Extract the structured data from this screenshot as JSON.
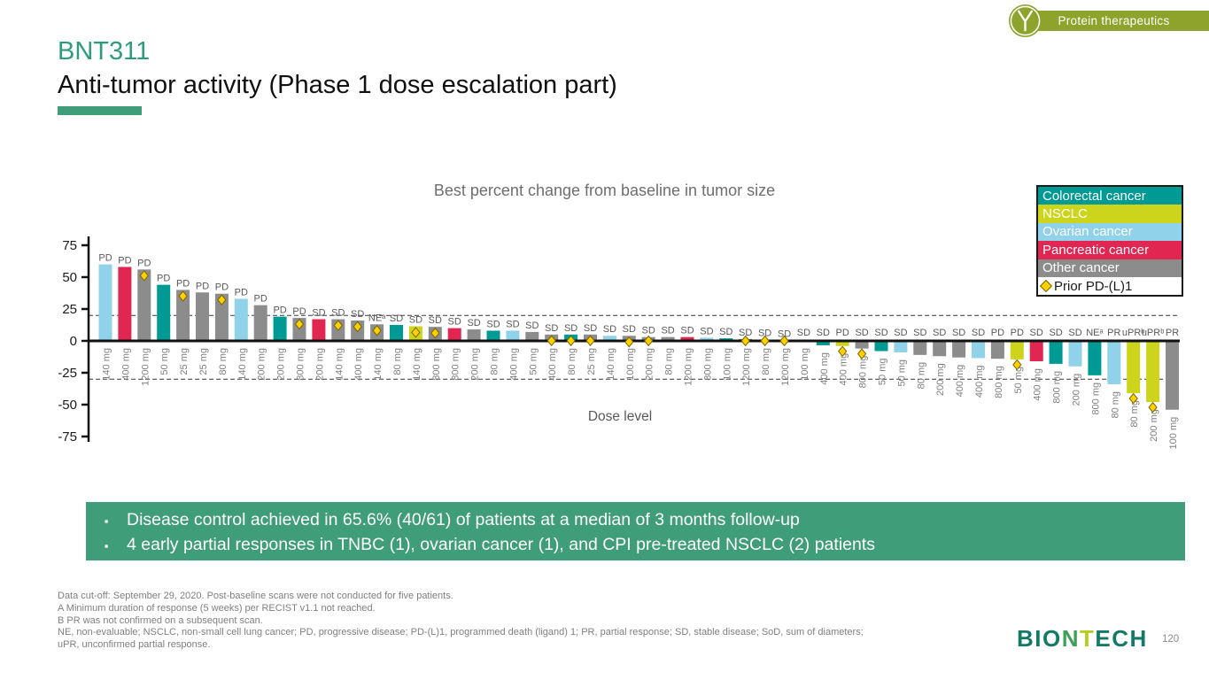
{
  "badge": {
    "label": "Protein therapeutics"
  },
  "header": {
    "product": "BNT311",
    "title": "Anti-tumor activity (Phase 1 dose escalation part)"
  },
  "summary_box": {
    "bullets": [
      "Disease control achieved in 65.6% (40/61) of patients at a median of 3 months follow-up",
      "4 early partial responses in TNBC (1), ovarian cancer (1), and CPI pre-treated NSCLC (2) patients"
    ]
  },
  "footnotes": [
    "Data cut-off: September 29, 2020. Post-baseline scans were not conducted for five patients.",
    "A Minimum duration of response (5 weeks) per RECIST v1.1 not reached.",
    "B PR was not confirmed on a subsequent scan.",
    "NE, non-evaluable; NSCLC, non-small cell lung cancer; PD, progressive disease; PD-(L)1, programmed death (ligand) 1; PR, partial response; SD, stable disease; SoD, sum of diameters;",
    "uPR, unconfirmed partial response."
  ],
  "footer": {
    "page": "120",
    "logo": {
      "part1": "BIO",
      "part2": "N",
      "part3": "T",
      "part4": "ECH"
    }
  },
  "colors": {
    "colorectal": "#009a94",
    "nsclc": "#ccd41c",
    "ovarian": "#8fd2e9",
    "pancreatic": "#e02651",
    "other": "#8c8c8c",
    "diamond_fill": "#ffd100",
    "diamond_stroke": "#7a6400",
    "accent_green": "#3f9d79",
    "badge_olive": "#8da32b"
  },
  "chart_data": {
    "type": "bar",
    "title": "Best percent change from baseline in tumor size",
    "xlabel": "Dose level",
    "ylabel": "",
    "ylim": [
      -75,
      75
    ],
    "yticks": [
      75,
      50,
      25,
      0,
      -25,
      -50,
      -75
    ],
    "reference_lines": [
      20,
      -30
    ],
    "grid": false,
    "legend_position": "top-right",
    "legend": [
      {
        "label": "Colorectal cancer",
        "key": "colorectal"
      },
      {
        "label": "NSCLC",
        "key": "nsclc"
      },
      {
        "label": "Ovarian cancer",
        "key": "ovarian"
      },
      {
        "label": "Pancreatic cancer",
        "key": "pancreatic"
      },
      {
        "label": "Other cancer",
        "key": "other"
      },
      {
        "label": "Prior PD-(L)1",
        "key": "prior_pd_l1"
      }
    ],
    "patients": [
      {
        "dose": "140 mg",
        "value": 60,
        "response": "PD",
        "cancer": "ovarian",
        "prior_pd_l1": false
      },
      {
        "dose": "400 mg",
        "value": 58,
        "response": "PD",
        "cancer": "pancreatic",
        "prior_pd_l1": false
      },
      {
        "dose": "1200 mg",
        "value": 56,
        "response": "PD",
        "cancer": "other",
        "prior_pd_l1": true
      },
      {
        "dose": "50 mg",
        "value": 44,
        "response": "PD",
        "cancer": "colorectal",
        "prior_pd_l1": false
      },
      {
        "dose": "25 mg",
        "value": 40,
        "response": "PD",
        "cancer": "other",
        "prior_pd_l1": true
      },
      {
        "dose": "25 mg",
        "value": 38,
        "response": "PD",
        "cancer": "other",
        "prior_pd_l1": false
      },
      {
        "dose": "80 mg",
        "value": 37,
        "response": "PD",
        "cancer": "other",
        "prior_pd_l1": true
      },
      {
        "dose": "140 mg",
        "value": 33,
        "response": "PD",
        "cancer": "ovarian",
        "prior_pd_l1": false
      },
      {
        "dose": "200 mg",
        "value": 28,
        "response": "PD",
        "cancer": "other",
        "prior_pd_l1": false
      },
      {
        "dose": "200 mg",
        "value": 19,
        "response": "PD",
        "cancer": "colorectal",
        "prior_pd_l1": false
      },
      {
        "dose": "800 mg",
        "value": 18,
        "response": "PD",
        "cancer": "other",
        "prior_pd_l1": true
      },
      {
        "dose": "200 mg",
        "value": 17,
        "response": "SD",
        "cancer": "pancreatic",
        "prior_pd_l1": false
      },
      {
        "dose": "140 mg",
        "value": 17,
        "response": "SD",
        "cancer": "other",
        "prior_pd_l1": true
      },
      {
        "dose": "400 mg",
        "value": 16,
        "response": "SD",
        "cancer": "other",
        "prior_pd_l1": true
      },
      {
        "dose": "140 mg",
        "value": 13,
        "response": "NEᵃ",
        "cancer": "other",
        "prior_pd_l1": true
      },
      {
        "dose": "80 mg",
        "value": 12.5,
        "response": "SD",
        "cancer": "colorectal",
        "prior_pd_l1": false
      },
      {
        "dose": "140 mg",
        "value": 11.5,
        "response": "SD",
        "cancer": "nsclc",
        "prior_pd_l1": true
      },
      {
        "dose": "800 mg",
        "value": 11,
        "response": "SD",
        "cancer": "other",
        "prior_pd_l1": true
      },
      {
        "dose": "800 mg",
        "value": 10,
        "response": "SD",
        "cancer": "pancreatic",
        "prior_pd_l1": false
      },
      {
        "dose": "200 mg",
        "value": 9,
        "response": "SD",
        "cancer": "other",
        "prior_pd_l1": false
      },
      {
        "dose": "80 mg",
        "value": 8,
        "response": "SD",
        "cancer": "colorectal",
        "prior_pd_l1": false
      },
      {
        "dose": "400 mg",
        "value": 8,
        "response": "SD",
        "cancer": "ovarian",
        "prior_pd_l1": false
      },
      {
        "dose": "50 mg",
        "value": 7,
        "response": "SD",
        "cancer": "other",
        "prior_pd_l1": false
      },
      {
        "dose": "400 mg",
        "value": 5,
        "response": "SD",
        "cancer": "other",
        "prior_pd_l1": true
      },
      {
        "dose": "80 mg",
        "value": 5,
        "response": "SD",
        "cancer": "colorectal",
        "prior_pd_l1": true
      },
      {
        "dose": "25 mg",
        "value": 5,
        "response": "SD",
        "cancer": "other",
        "prior_pd_l1": true
      },
      {
        "dose": "140 mg",
        "value": 4,
        "response": "SD",
        "cancer": "ovarian",
        "prior_pd_l1": false
      },
      {
        "dose": "100 mg",
        "value": 4,
        "response": "SD",
        "cancer": "other",
        "prior_pd_l1": true
      },
      {
        "dose": "200 mg",
        "value": 3,
        "response": "SD",
        "cancer": "other",
        "prior_pd_l1": true
      },
      {
        "dose": "80 mg",
        "value": 3,
        "response": "SD",
        "cancer": "other",
        "prior_pd_l1": false
      },
      {
        "dose": "1200 mg",
        "value": 3,
        "response": "SD",
        "cancer": "pancreatic",
        "prior_pd_l1": false
      },
      {
        "dose": "800 mg",
        "value": 2.5,
        "response": "SD",
        "cancer": "ovarian",
        "prior_pd_l1": false
      },
      {
        "dose": "100 mg",
        "value": 2,
        "response": "SD",
        "cancer": "colorectal",
        "prior_pd_l1": false
      },
      {
        "dose": "1200 mg",
        "value": 1.5,
        "response": "SD",
        "cancer": "other",
        "prior_pd_l1": true
      },
      {
        "dose": "80 mg",
        "value": 1,
        "response": "SD",
        "cancer": "other",
        "prior_pd_l1": true
      },
      {
        "dose": "1200 mg",
        "value": 0.5,
        "response": "SD",
        "cancer": "other",
        "prior_pd_l1": true
      },
      {
        "dose": "100 mg",
        "value": 0,
        "response": "SD",
        "cancer": "other",
        "prior_pd_l1": false
      },
      {
        "dose": "400 mg",
        "value": -3.5,
        "response": "SD",
        "cancer": "colorectal",
        "prior_pd_l1": false
      },
      {
        "dose": "400 mg",
        "value": -4,
        "response": "PD",
        "cancer": "nsclc",
        "prior_pd_l1": true
      },
      {
        "dose": "800 mg",
        "value": -6,
        "response": "SD",
        "cancer": "other",
        "prior_pd_l1": true
      },
      {
        "dose": "50 mg",
        "value": -8,
        "response": "SD",
        "cancer": "colorectal",
        "prior_pd_l1": false
      },
      {
        "dose": "50 mg",
        "value": -9,
        "response": "SD",
        "cancer": "ovarian",
        "prior_pd_l1": false
      },
      {
        "dose": "80 mg",
        "value": -11,
        "response": "SD",
        "cancer": "other",
        "prior_pd_l1": false
      },
      {
        "dose": "200 mg",
        "value": -12,
        "response": "SD",
        "cancer": "other",
        "prior_pd_l1": false
      },
      {
        "dose": "400 mg",
        "value": -13,
        "response": "SD",
        "cancer": "other",
        "prior_pd_l1": false
      },
      {
        "dose": "400 mg",
        "value": -13.5,
        "response": "SD",
        "cancer": "ovarian",
        "prior_pd_l1": false
      },
      {
        "dose": "800 mg",
        "value": -14,
        "response": "PD",
        "cancer": "other",
        "prior_pd_l1": false
      },
      {
        "dose": "50 mg",
        "value": -14.5,
        "response": "PD",
        "cancer": "nsclc",
        "prior_pd_l1": true
      },
      {
        "dose": "400 mg",
        "value": -16,
        "response": "SD",
        "cancer": "pancreatic",
        "prior_pd_l1": false
      },
      {
        "dose": "800 mg",
        "value": -18,
        "response": "SD",
        "cancer": "colorectal",
        "prior_pd_l1": false
      },
      {
        "dose": "200 mg",
        "value": -20,
        "response": "SD",
        "cancer": "ovarian",
        "prior_pd_l1": false
      },
      {
        "dose": "800 mg",
        "value": -27,
        "response": "NEᵃ",
        "cancer": "colorectal",
        "prior_pd_l1": false
      },
      {
        "dose": "80 mg",
        "value": -34,
        "response": "PR",
        "cancer": "ovarian",
        "prior_pd_l1": false
      },
      {
        "dose": "80 mg",
        "value": -41,
        "response": "uPRᵇ",
        "cancer": "nsclc",
        "prior_pd_l1": true
      },
      {
        "dose": "200 mg",
        "value": -48,
        "response": "uPRᵇ",
        "cancer": "nsclc",
        "prior_pd_l1": true
      },
      {
        "dose": "100 mg",
        "value": -54,
        "response": "PR",
        "cancer": "other",
        "prior_pd_l1": false
      }
    ]
  }
}
